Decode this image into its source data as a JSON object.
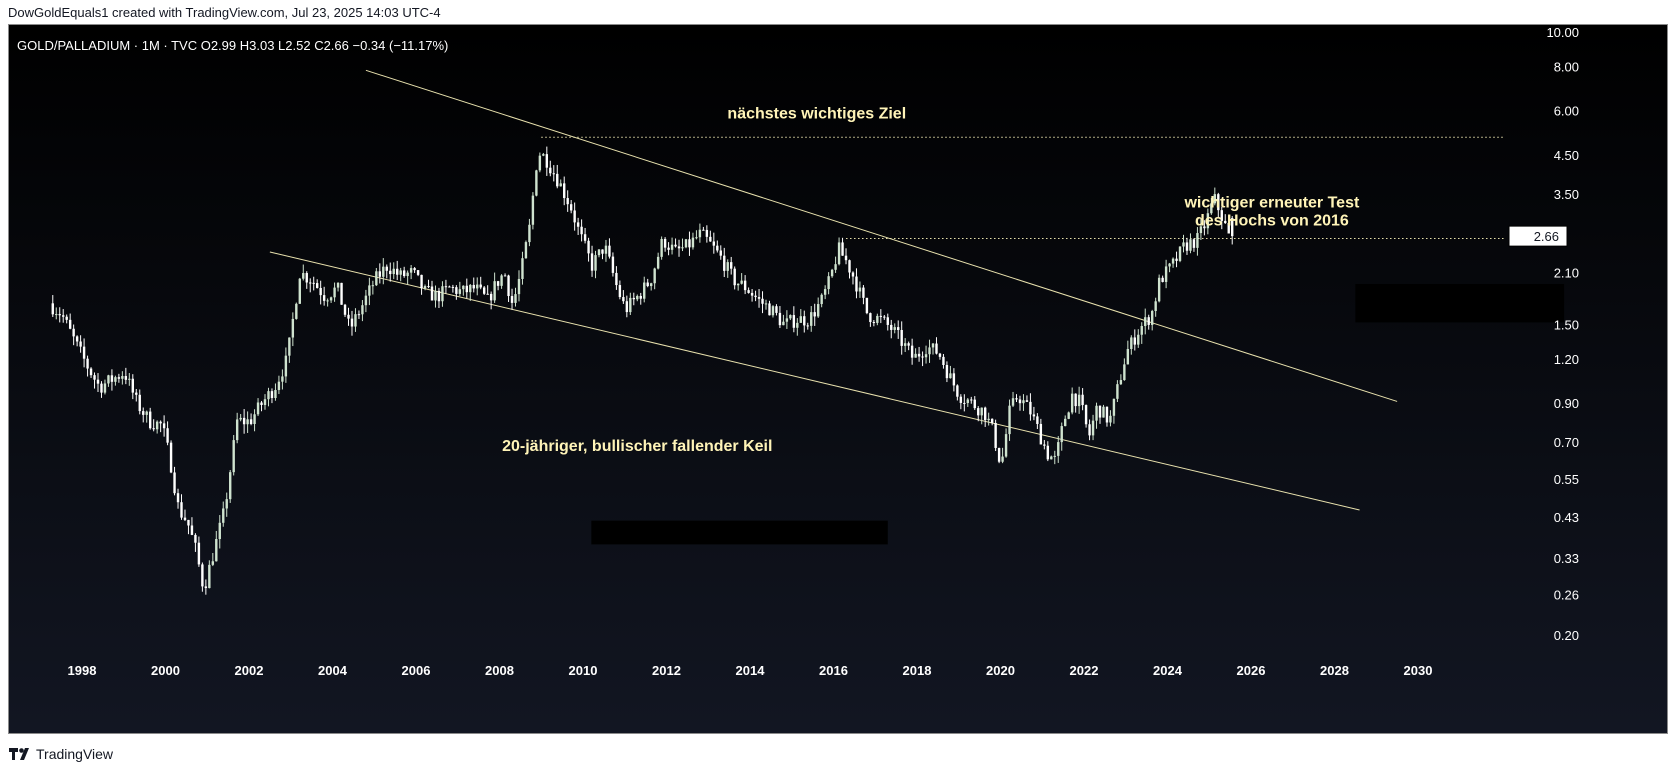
{
  "header": {
    "credit": "DowGoldEquals1 created with TradingView.com, Jul 23, 2025 14:03 UTC-4"
  },
  "footer": {
    "logo_text": "TradingView"
  },
  "colors": {
    "background_top": "#000000",
    "background_bottom": "#121622",
    "candle_up": "#cfe3cf",
    "candle_down": "#ffffff",
    "trendline": "#e9e2ae",
    "annotation_text": "#fff4b8",
    "axis_text": "#ffffff"
  },
  "chart_data": {
    "type": "candlestick",
    "symbol_line": "GOLD/PALLADIUM · 1M · TVC  O2.99  H3.03  L2.52  C2.66  −0.34 (−11.17%)",
    "ohlc": {
      "open": 2.99,
      "high": 3.03,
      "low": 2.52,
      "close": 2.66,
      "change": -0.34,
      "change_pct": -11.17
    },
    "last_price_label": "2.66",
    "y_scale": "log",
    "y_ticks": [
      "10.00",
      "8.00",
      "6.00",
      "4.50",
      "3.50",
      "2.66",
      "2.10",
      "1.50",
      "1.20",
      "0.90",
      "0.70",
      "0.55",
      "0.43",
      "0.33",
      "0.26",
      "0.20"
    ],
    "y_tick_values": [
      10.0,
      8.0,
      6.0,
      4.5,
      3.5,
      2.1,
      1.5,
      1.2,
      0.9,
      0.7,
      0.55,
      0.43,
      0.33,
      0.26,
      0.2
    ],
    "x_ticks": [
      "1998",
      "2000",
      "2002",
      "2004",
      "2006",
      "2008",
      "2010",
      "2012",
      "2014",
      "2016",
      "2018",
      "2020",
      "2022",
      "2024",
      "2026",
      "2028",
      "2030"
    ],
    "x_tick_years": [
      1998,
      2000,
      2002,
      2004,
      2006,
      2008,
      2010,
      2012,
      2014,
      2016,
      2018,
      2020,
      2022,
      2024,
      2026,
      2028,
      2030
    ],
    "price_path": [
      [
        1997.3,
        1.72
      ],
      [
        1997.6,
        1.6
      ],
      [
        1997.9,
        1.35
      ],
      [
        1998.2,
        1.15
      ],
      [
        1998.5,
        1.0
      ],
      [
        1998.8,
        1.05
      ],
      [
        1999.1,
        1.1
      ],
      [
        1999.4,
        0.9
      ],
      [
        1999.7,
        0.8
      ],
      [
        2000.0,
        0.78
      ],
      [
        2000.2,
        0.62
      ],
      [
        2000.4,
        0.45
      ],
      [
        2000.6,
        0.42
      ],
      [
        2000.8,
        0.35
      ],
      [
        2001.0,
        0.27
      ],
      [
        2001.2,
        0.33
      ],
      [
        2001.5,
        0.45
      ],
      [
        2001.8,
        0.8
      ],
      [
        2002.1,
        0.8
      ],
      [
        2002.4,
        0.9
      ],
      [
        2002.7,
        1.0
      ],
      [
        2003.0,
        1.2
      ],
      [
        2003.3,
        2.1
      ],
      [
        2003.6,
        2.0
      ],
      [
        2003.9,
        1.8
      ],
      [
        2004.2,
        1.9
      ],
      [
        2004.5,
        1.45
      ],
      [
        2004.8,
        1.7
      ],
      [
        2005.1,
        2.0
      ],
      [
        2005.4,
        2.2
      ],
      [
        2005.7,
        2.05
      ],
      [
        2006.0,
        2.1
      ],
      [
        2006.3,
        1.85
      ],
      [
        2006.6,
        1.8
      ],
      [
        2006.9,
        1.9
      ],
      [
        2007.2,
        1.85
      ],
      [
        2007.5,
        1.9
      ],
      [
        2007.8,
        1.75
      ],
      [
        2008.0,
        1.95
      ],
      [
        2008.2,
        2.1
      ],
      [
        2008.4,
        1.7
      ],
      [
        2008.6,
        2.1
      ],
      [
        2008.8,
        2.8
      ],
      [
        2009.0,
        4.6
      ],
      [
        2009.2,
        4.4
      ],
      [
        2009.5,
        3.8
      ],
      [
        2009.8,
        3.2
      ],
      [
        2010.0,
        2.7
      ],
      [
        2010.3,
        2.2
      ],
      [
        2010.6,
        2.5
      ],
      [
        2010.9,
        1.9
      ],
      [
        2011.1,
        1.65
      ],
      [
        2011.4,
        1.8
      ],
      [
        2011.7,
        2.0
      ],
      [
        2012.0,
        2.6
      ],
      [
        2012.3,
        2.4
      ],
      [
        2012.6,
        2.5
      ],
      [
        2012.9,
        2.7
      ],
      [
        2013.1,
        2.55
      ],
      [
        2013.4,
        2.3
      ],
      [
        2013.7,
        2.0
      ],
      [
        2014.0,
        1.9
      ],
      [
        2014.3,
        1.75
      ],
      [
        2014.6,
        1.65
      ],
      [
        2014.9,
        1.5
      ],
      [
        2015.2,
        1.55
      ],
      [
        2015.5,
        1.55
      ],
      [
        2015.8,
        1.75
      ],
      [
        2016.0,
        2.0
      ],
      [
        2016.2,
        2.45
      ],
      [
        2016.4,
        2.25
      ],
      [
        2016.6,
        2.0
      ],
      [
        2016.9,
        1.6
      ],
      [
        2017.2,
        1.55
      ],
      [
        2017.5,
        1.45
      ],
      [
        2017.8,
        1.3
      ],
      [
        2018.0,
        1.2
      ],
      [
        2018.3,
        1.3
      ],
      [
        2018.6,
        1.25
      ],
      [
        2018.9,
        1.05
      ],
      [
        2019.1,
        0.95
      ],
      [
        2019.4,
        0.9
      ],
      [
        2019.7,
        0.85
      ],
      [
        2019.9,
        0.75
      ],
      [
        2020.1,
        0.6
      ],
      [
        2020.3,
        0.85
      ],
      [
        2020.5,
        0.95
      ],
      [
        2020.8,
        0.85
      ],
      [
        2021.0,
        0.75
      ],
      [
        2021.2,
        0.65
      ],
      [
        2021.4,
        0.62
      ],
      [
        2021.6,
        0.8
      ],
      [
        2021.8,
        0.95
      ],
      [
        2022.0,
        0.9
      ],
      [
        2022.2,
        0.72
      ],
      [
        2022.4,
        0.88
      ],
      [
        2022.7,
        0.8
      ],
      [
        2022.9,
        1.0
      ],
      [
        2023.1,
        1.25
      ],
      [
        2023.4,
        1.45
      ],
      [
        2023.7,
        1.6
      ],
      [
        2023.9,
        2.0
      ],
      [
        2024.2,
        2.2
      ],
      [
        2024.5,
        2.5
      ],
      [
        2024.8,
        2.6
      ],
      [
        2025.0,
        2.9
      ],
      [
        2025.2,
        3.4
      ],
      [
        2025.4,
        2.99
      ],
      [
        2025.55,
        2.66
      ]
    ],
    "annotations": [
      {
        "text": "nächstes wichtiges Ziel",
        "x": 2015.6,
        "y": 5.7
      },
      {
        "text": "wichtiger erneuter Test",
        "x": 2026.5,
        "y": 3.2
      },
      {
        "text": "des Hochs von 2016",
        "x": 2026.5,
        "y": 2.85
      },
      {
        "text": "20-jähriger, bullischer fallender Keil",
        "x": 2011.3,
        "y": 0.66
      }
    ],
    "trendlines": [
      {
        "name": "upper wedge line",
        "from": [
          2004.8,
          7.8
        ],
        "to": [
          2029.5,
          0.91
        ]
      },
      {
        "name": "lower wedge line",
        "from": [
          2002.5,
          2.4
        ],
        "to": [
          2028.6,
          0.45
        ]
      }
    ],
    "horizontal_levels": [
      {
        "name": "2009 high target",
        "y": 5.05,
        "from_year": 2009.0,
        "to_year": 2032.0
      },
      {
        "name": "2016 high retest",
        "y": 2.62,
        "from_year": 2016.3,
        "to_year": 2032.0
      }
    ],
    "redaction_boxes": [
      {
        "from": [
          2010.2,
          0.42
        ],
        "to": [
          2017.3,
          0.36
        ]
      },
      {
        "from": [
          2028.5,
          1.95
        ],
        "to": [
          2033.5,
          1.52
        ]
      }
    ]
  }
}
